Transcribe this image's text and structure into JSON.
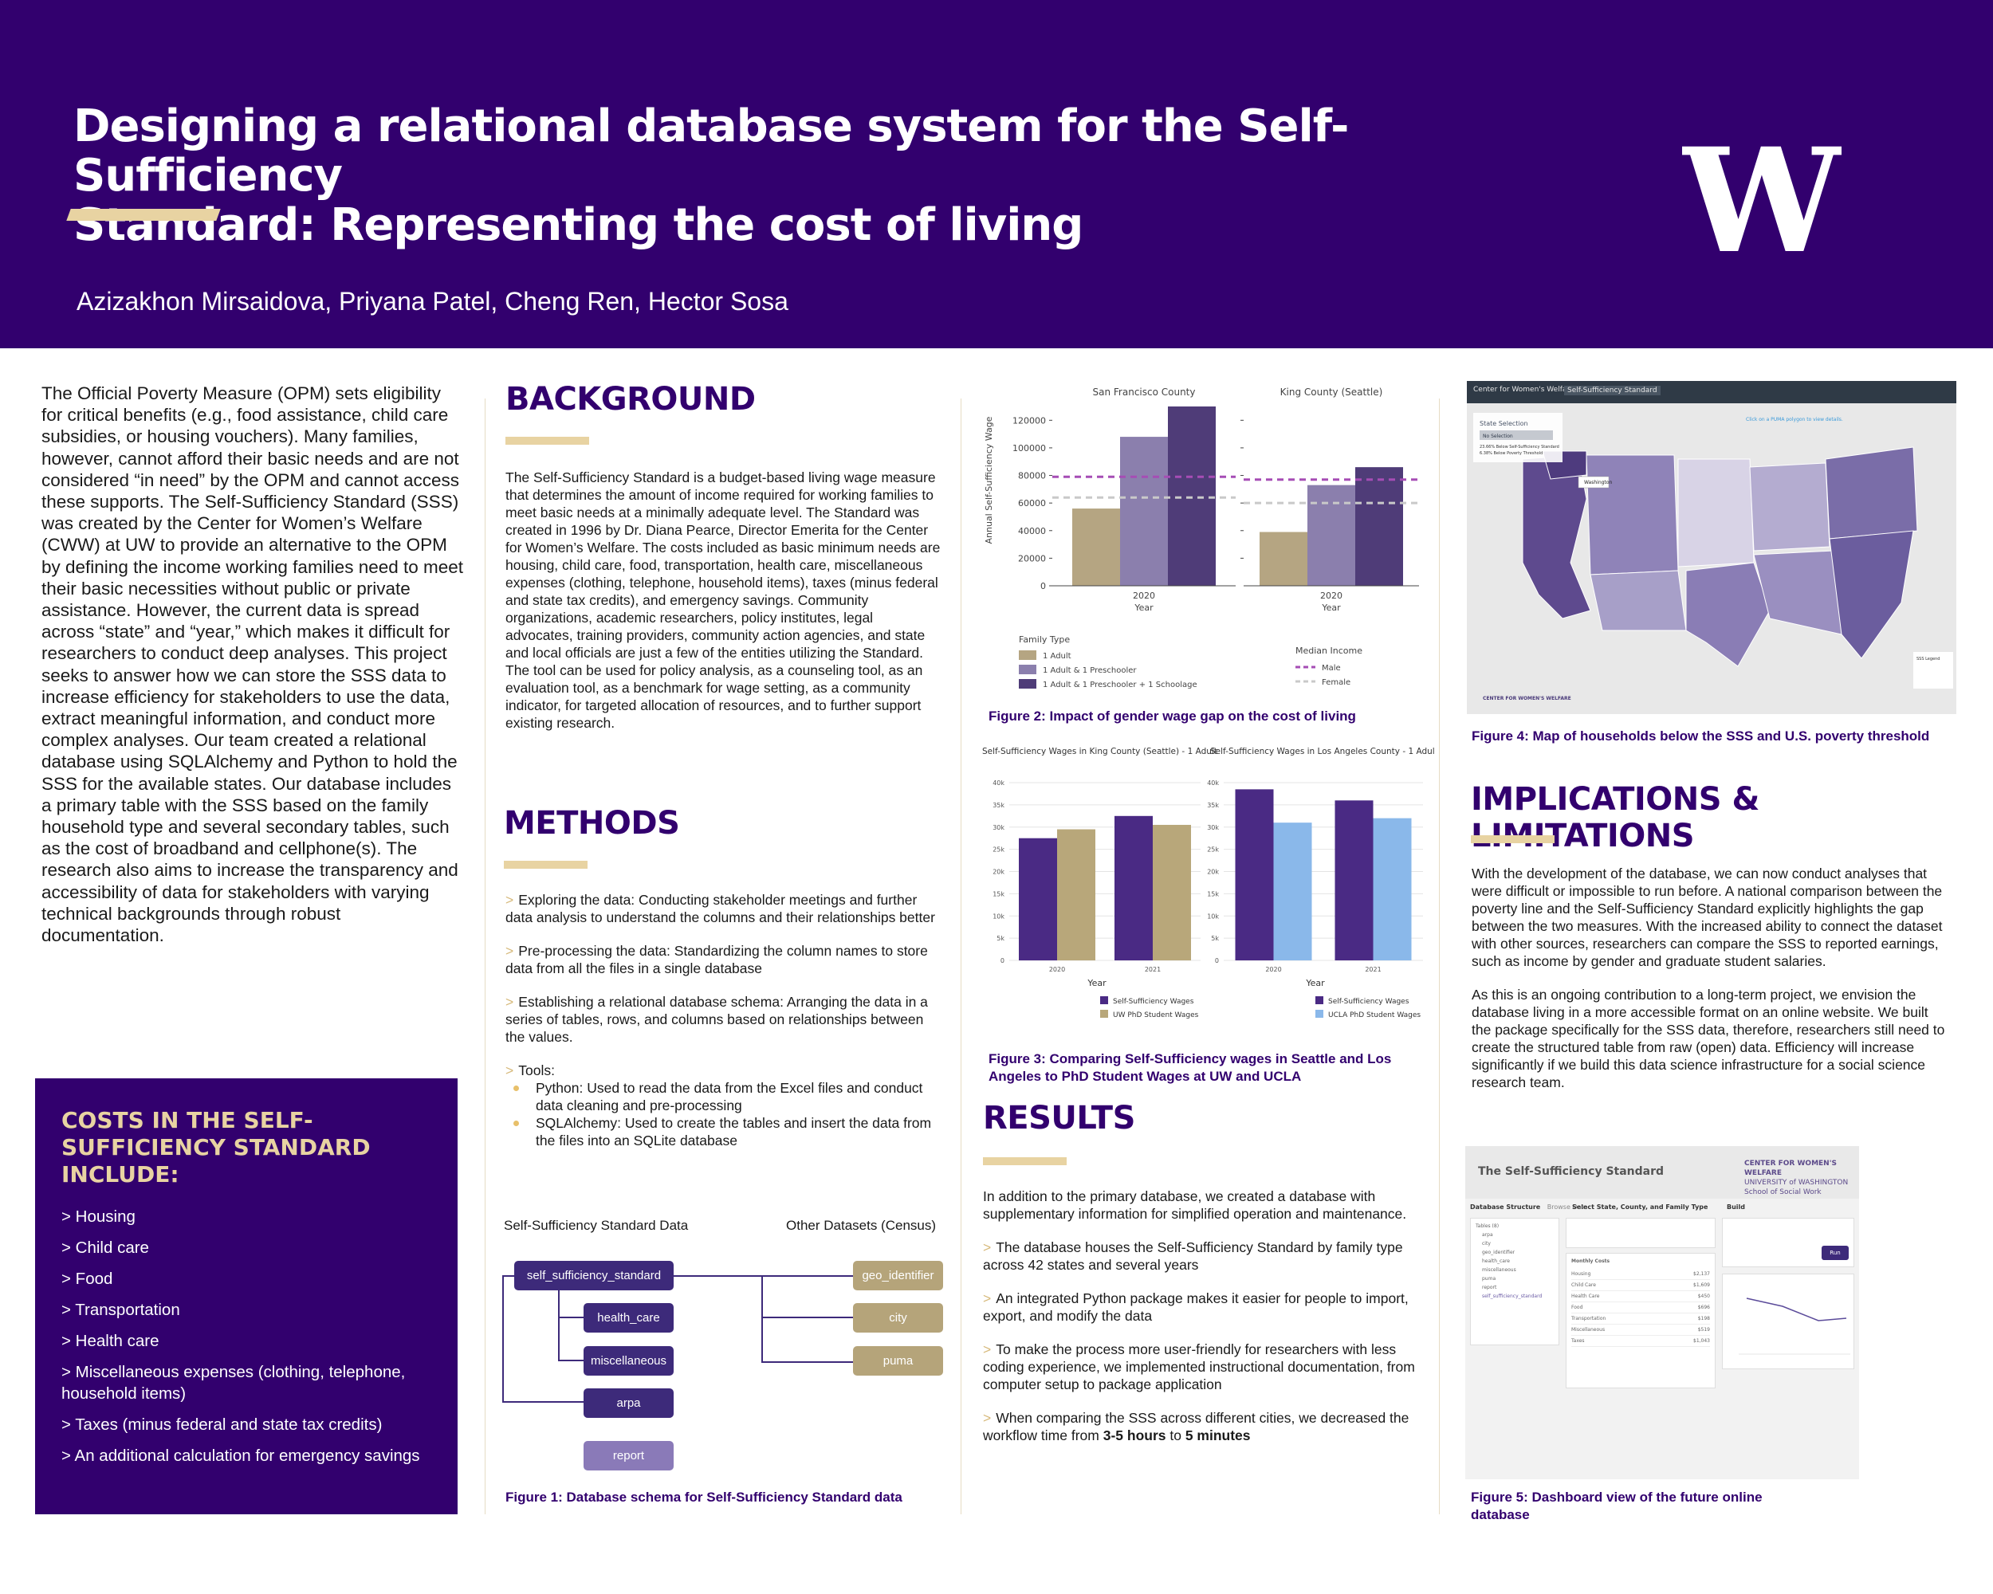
{
  "header": {
    "title_line1": "Designing a relational database system for the Self-Sufficiency",
    "title_line2": "Standard: Representing the cost of living",
    "authors": "Azizakhon Mirsaidova, Priyana Patel, Cheng Ren, Hector Sosa",
    "logo_letter": "W",
    "logo_color": "#ffffff",
    "bg_color": "#32006e",
    "accent_color": "#e8d3a2"
  },
  "intro": {
    "text": "The Official Poverty Measure (OPM) sets eligibility for critical benefits (e.g., food assistance, child care subsidies, or housing vouchers). Many families, however, cannot afford their basic needs and are not considered “in need” by the OPM and cannot access these supports. The Self-Sufficiency Standard (SSS) was created by the Center for Women’s Welfare (CWW) at UW to provide an alternative to the OPM by defining the income working families need to meet their basic necessities without public or private assistance. However, the current data is spread across “state” and “year,” which makes it difficult for researchers to conduct deep analyses. This  project seeks to answer how we can store the SSS data to increase efficiency for stakeholders to use the data, extract meaningful information, and conduct more complex analyses. Our team created a relational database using SQLAlchemy and Python to hold the SSS for the available states. Our database includes a primary table with the SSS based on the family household type and several secondary tables, such as the cost of broadband and cellphone(s). The research also aims to increase the transparency and accessibility of data for stakeholders with varying technical backgrounds through robust documentation."
  },
  "costs": {
    "title": "COSTS IN THE SELF-SUFFICIENCY STANDARD INCLUDE:",
    "items": [
      "> Housing",
      "> Child care",
      "> Food",
      "> Transportation",
      "> Health care",
      "> Miscellaneous expenses (clothing, telephone, household items)",
      "> Taxes (minus federal and state tax credits)",
      "> An additional calculation for emergency savings"
    ]
  },
  "background": {
    "title": "BACKGROUND",
    "text": "The Self-Sufficiency Standard is a budget-based living wage measure that determines the amount of income required for working families to meet basic needs at a minimally adequate level. The Standard was created in 1996 by Dr. Diana Pearce, Director Emerita for the Center for Women’s Welfare. The costs included as basic minimum needs are housing, child care, food, transportation, health care, miscellaneous expenses (clothing, telephone, household items), taxes (minus federal and state tax credits), and emergency savings. Community organizations, academic researchers, policy institutes, legal advocates, training providers, community action agencies, and state and local officials are just a few of the entities utilizing the Standard. The tool can be used for policy analysis, as a counseling tool, as an evaluation tool, as a benchmark for wage setting, as a community indicator, for targeted allocation of resources, and to further support existing research."
  },
  "methods": {
    "title": "METHODS",
    "items": [
      "Exploring the data: Conducting stakeholder meetings and further data analysis to understand the columns and their relationships better",
      "Pre-processing the data: Standardizing the column names to store data from all the files in a single database",
      "Establishing a relational database schema: Arranging the data in a series of tables, rows, and columns based on relationships between the values."
    ],
    "tools_label": "Tools:",
    "tools": [
      "Python: Used to read the data from the Excel files and conduct data cleaning and pre-processing",
      "SQLAlchemy: Used to create the tables and insert the data from the files into an SQLite database"
    ],
    "chevron": ">"
  },
  "schema": {
    "left_header": "Self-Sufficiency Standard Data",
    "right_header": "Other Datasets (Census)",
    "primary": "self_sufficiency_standard",
    "secondary": [
      "health_care",
      "miscellaneous",
      "arpa"
    ],
    "extra": "report",
    "census": [
      "geo_identifier",
      "city",
      "puma"
    ],
    "caption": "Figure 1: Database schema for Self-Sufficiency Standard data"
  },
  "figure2": {
    "caption": "Figure 2: Impact of gender wage gap on the cost of living",
    "legend_title": "Family Type",
    "median_title": "Median Income",
    "chart_data": [
      {
        "type": "bar",
        "title": "San Francisco County",
        "xlabel": "Year",
        "ylabel": "Annual Self-Sufficiency Wage",
        "categories": [
          "2020"
        ],
        "ylim": [
          0,
          130000
        ],
        "yticks": [
          "0",
          "20000",
          "40000",
          "60000",
          "80000",
          "100000",
          "120000"
        ],
        "series": [
          {
            "name": "1 Adult",
            "values": [
              56000
            ],
            "color": "#b5a582"
          },
          {
            "name": "1 Adult & 1 Preschooler",
            "values": [
              108000
            ],
            "color": "#8b7fad"
          },
          {
            "name": "1 Adult & 1 Preschooler + 1 Schoolage",
            "values": [
              130000
            ],
            "color": "#4f3c78"
          }
        ],
        "reference_lines": [
          {
            "name": "Male",
            "value": 79000,
            "color": "#a64db5"
          },
          {
            "name": "Female",
            "value": 64000,
            "color": "#c9c9c9"
          }
        ]
      },
      {
        "type": "bar",
        "title": "King County (Seattle)",
        "xlabel": "Year",
        "categories": [
          "2020"
        ],
        "ylim": [
          0,
          130000
        ],
        "series": [
          {
            "name": "1 Adult",
            "values": [
              39000
            ],
            "color": "#b5a582"
          },
          {
            "name": "1 Adult & 1 Preschooler",
            "values": [
              73000
            ],
            "color": "#8b7fad"
          },
          {
            "name": "1 Adult & 1 Preschooler + 1 Schoolage",
            "values": [
              86000
            ],
            "color": "#4f3c78"
          }
        ],
        "reference_lines": [
          {
            "name": "Male",
            "value": 77000,
            "color": "#a64db5"
          },
          {
            "name": "Female",
            "value": 60000,
            "color": "#c9c9c9"
          }
        ]
      }
    ]
  },
  "figure3": {
    "caption_line1": "Figure 3: Comparing Self-Sufficiency wages in Seattle and Los",
    "caption_line2": "Angeles to PhD Student Wages at UW and UCLA",
    "chart_data": [
      {
        "type": "bar",
        "title": "Self-Sufficiency Wages in King County (Seattle) - 1 Adult",
        "xlabel": "Year",
        "categories": [
          "2020",
          "2021"
        ],
        "ylim": [
          0,
          40000
        ],
        "yticks": [
          "0",
          "5k",
          "10k",
          "15k",
          "20k",
          "25k",
          "30k",
          "35k",
          "40k"
        ],
        "series": [
          {
            "name": "Self-Sufficiency Wages",
            "values": [
              27500,
              32500
            ],
            "color": "#4a2a84"
          },
          {
            "name": "UW PhD Student Wages",
            "values": [
              29500,
              30500
            ],
            "color": "#b8a77a"
          }
        ]
      },
      {
        "type": "bar",
        "title": "Self-Sufficiency Wages in Los Angeles County - 1 Adult",
        "xlabel": "Year",
        "categories": [
          "2020",
          "2021"
        ],
        "ylim": [
          0,
          40000
        ],
        "yticks": [
          "0",
          "5k",
          "10k",
          "15k",
          "20k",
          "25k",
          "30k",
          "35k",
          "40k"
        ],
        "series": [
          {
            "name": "Self-Sufficiency Wages",
            "values": [
              38500,
              36000
            ],
            "color": "#4a2a84"
          },
          {
            "name": "UCLA PhD Student Wages",
            "values": [
              31000,
              32000
            ],
            "color": "#8ab8ea"
          }
        ]
      }
    ]
  },
  "results": {
    "title": "RESULTS",
    "intro": "In addition to the primary database, we created a database with supplementary information for simplified operation and maintenance.",
    "items": [
      "The database houses the Self-Sufficiency Standard by family type across 42 states and several years",
      "An integrated Python package makes it easier for people to import, export, and modify the data",
      "To make the process more user-friendly for researchers with less coding experience, we implemented instructional documentation, from computer setup to package application"
    ],
    "last_prefix": "When comparing the SSS across different cities, we decreased the workflow time from ",
    "last_bold1": "3-5 hours",
    "last_mid": " to ",
    "last_bold2": "5 minutes"
  },
  "figure4": {
    "caption": "Figure 4: Map of households below the SSS and U.S. poverty threshold",
    "tab1": "Center for Women's Welfare (CWW)",
    "tab2": "Self-Sufficiency Standard",
    "panel_title": "State Selection",
    "panel_value": "No Selection",
    "hint": "Click on a PUMA polygon to view details.",
    "tooltip": "Washington",
    "legend_title": "SSS Legend",
    "stat1": "23.66% Below Self-Sufficiency Standard",
    "stat2": "6.38% Below Poverty Threshold",
    "brand": "CENTER FOR WOMEN'S WELFARE"
  },
  "implications": {
    "title": "IMPLICATIONS & LIMITATIONS",
    "p1": "With the development of the database, we can now conduct analyses that were difficult or impossible to run before. A national comparison between the poverty line and the Self-Sufficiency Standard explicitly highlights the gap between the two measures. With the increased ability to connect the dataset with other sources, researchers can compare the SSS to reported earnings, such as income by gender and graduate student salaries.",
    "p2": "As this is an ongoing contribution to a long-term project, we envision the database living in a more accessible format on an online website. We built the package specifically for the SSS data, therefore, researchers still need to create the structured table from raw (open) data. Efficiency will increase significantly if we build this data science infrastructure for a social science research team."
  },
  "figure5": {
    "caption_line1": "Figure 5: Dashboard view of the future online",
    "caption_line2": "database",
    "app_title": "The Self-Sufficiency Standard",
    "brand_line1": "CENTER FOR WOMEN'S WELFARE",
    "brand_line2": "UNIVERSITY of WASHINGTON",
    "brand_line3": "School of Social Work",
    "tab_db": "Database Structure",
    "tab_browse": "Browse Data",
    "select_label": "Select State, County, and Family Type",
    "build_label": "Build",
    "run_label": "Run",
    "tables": [
      "Tables (8)",
      "arpa",
      "city",
      "geo_identifier",
      "health_care",
      "miscellaneous",
      "puma",
      "report",
      "self_sufficiency_standard"
    ],
    "monthly_costs_title": "Monthly Costs",
    "monthly_costs": [
      {
        "label": "Housing",
        "value": "$2,137"
      },
      {
        "label": "Child Care",
        "value": "$1,609"
      },
      {
        "label": "Health Care",
        "value": "$450"
      },
      {
        "label": "Food",
        "value": "$696"
      },
      {
        "label": "Transportation",
        "value": "$198"
      },
      {
        "label": "Miscellaneous",
        "value": "$519"
      },
      {
        "label": "Taxes",
        "value": "$1,043"
      }
    ]
  }
}
